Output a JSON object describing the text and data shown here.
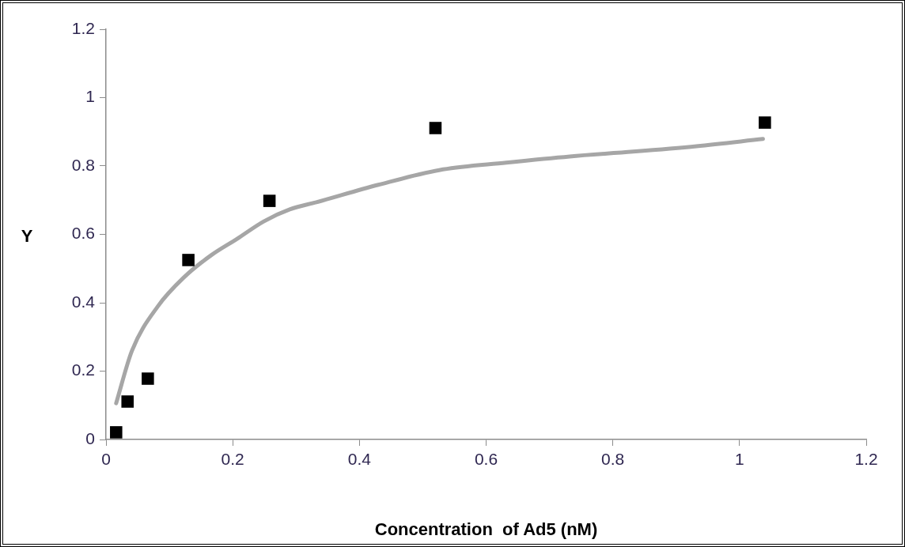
{
  "chart_data": {
    "type": "scatter",
    "xlabel": "Concentration  of Ad5 (nM)",
    "ylabel": "Y",
    "series": [
      {
        "color": "#000000",
        "marker": "square",
        "x": [
          0.016,
          0.034,
          0.066,
          0.13,
          0.258,
          0.52,
          1.04
        ],
        "values": [
          0.021,
          0.111,
          0.178,
          0.525,
          0.698,
          0.911,
          0.927
        ]
      },
      {
        "type": "line",
        "color": "#a6a6a6",
        "marker": "none",
        "line_style": "solid",
        "x": [
          0.016,
          0.041,
          0.082,
          0.124,
          0.166,
          0.207,
          0.249,
          0.29,
          0.332,
          0.43,
          0.532,
          0.632,
          0.732,
          0.832,
          0.932,
          1.037
        ],
        "values": [
          0.106,
          0.26,
          0.39,
          0.476,
          0.539,
          0.587,
          0.638,
          0.673,
          0.694,
          0.745,
          0.79,
          0.81,
          0.828,
          0.842,
          0.858,
          0.879
        ]
      }
    ],
    "xlim": [
      0,
      1.2
    ],
    "xticks": [
      0,
      0.2,
      0.4,
      0.6,
      0.8,
      1,
      1.2
    ],
    "ylim": [
      0,
      1.2
    ],
    "yticks": [
      0,
      0.2,
      0.4,
      0.6,
      0.8,
      1,
      1.2
    ],
    "grid": false,
    "legend": false
  }
}
